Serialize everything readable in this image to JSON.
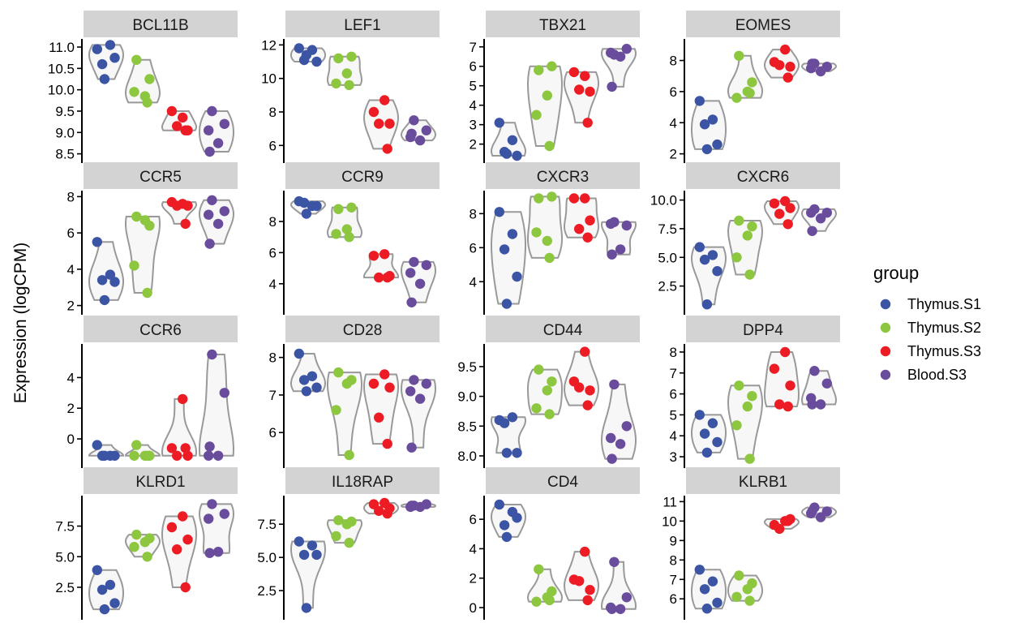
{
  "chart_data": {
    "type": "violin",
    "ylabel": "Expression (logCPM)",
    "xlabel": "",
    "legend": {
      "title": "group",
      "position": "right",
      "entries": [
        "Thymus.S1",
        "Thymus.S2",
        "Thymus.S3",
        "Blood.S3"
      ]
    },
    "groups": [
      "Thymus.S1",
      "Thymus.S2",
      "Thymus.S3",
      "Blood.S3"
    ],
    "colors": {
      "Thymus.S1": "#3B54A4",
      "Thymus.S2": "#8DC63F",
      "Thymus.S3": "#ED1C24",
      "Blood.S3": "#6A4C9C",
      "violin_stroke": "#999999",
      "violin_fill": "#F7F7F7",
      "strip_fill": "#D3D3D3"
    },
    "panels": [
      {
        "gene": "BCL11B",
        "ylim": [
          8.5,
          11.05
        ],
        "ticks": [
          "8.5",
          "9.0",
          "9.5",
          "10.0",
          "10.5",
          "11.0"
        ],
        "series": [
          [
            10.95,
            11.05,
            10.6,
            10.75,
            10.25
          ],
          [
            10.7,
            10.25,
            9.85,
            9.95,
            9.7
          ],
          [
            9.35,
            9.5,
            9.05,
            9.15,
            9.05
          ],
          [
            9.5,
            9.2,
            9.05,
            8.75,
            8.55
          ]
        ]
      },
      {
        "gene": "LEF1",
        "ylim": [
          5.5,
          12.0
        ],
        "ticks": [
          "6",
          "8",
          "10",
          "12"
        ],
        "series": [
          [
            11.8,
            11.7,
            11.1,
            11.0,
            11.4
          ],
          [
            11.2,
            11.3,
            10.3,
            9.7,
            9.6
          ],
          [
            8.7,
            8.0,
            7.3,
            7.3,
            5.8
          ],
          [
            7.5,
            6.9,
            6.5,
            6.3,
            6.7
          ]
        ]
      },
      {
        "gene": "TBX21",
        "ylim": [
          1.5,
          7.1
        ],
        "ticks": [
          "2",
          "3",
          "4",
          "5",
          "6",
          "7"
        ],
        "series": [
          [
            3.1,
            2.2,
            1.6,
            1.4,
            1.5
          ],
          [
            5.8,
            6.0,
            4.5,
            3.5,
            1.9
          ],
          [
            5.5,
            5.7,
            4.7,
            4.8,
            3.1
          ],
          [
            6.6,
            6.9,
            6.7,
            6.5,
            4.95
          ]
        ]
      },
      {
        "gene": "EOMES",
        "ylim": [
          2.0,
          9.0
        ],
        "ticks": [
          "2",
          "4",
          "6",
          "8"
        ],
        "series": [
          [
            5.4,
            4.2,
            3.9,
            2.6,
            2.3
          ],
          [
            8.3,
            6.6,
            6.0,
            5.6,
            5.9
          ],
          [
            8.7,
            7.9,
            7.6,
            7.7,
            6.9
          ],
          [
            7.8,
            7.6,
            7.5,
            7.3,
            7.8
          ]
        ]
      },
      {
        "gene": "CCR5",
        "ylim": [
          2.0,
          8.0
        ],
        "ticks": [
          "2",
          "4",
          "6",
          "8"
        ],
        "series": [
          [
            5.5,
            3.7,
            3.4,
            3.3,
            2.3
          ],
          [
            6.9,
            6.4,
            6.7,
            4.2,
            2.7
          ],
          [
            7.6,
            7.7,
            7.5,
            7.5,
            6.5
          ],
          [
            7.8,
            7.2,
            7.0,
            6.5,
            5.4
          ]
        ]
      },
      {
        "gene": "CCR9",
        "ylim": [
          2.6,
          9.6
        ],
        "ticks": [
          "4",
          "6",
          "8"
        ],
        "series": [
          [
            9.3,
            9.0,
            9.2,
            9.0,
            8.5
          ],
          [
            8.8,
            8.9,
            7.5,
            7.2,
            7.0
          ],
          [
            5.9,
            5.8,
            4.5,
            4.4,
            4.4
          ],
          [
            5.4,
            5.2,
            4.7,
            4.0,
            2.8
          ]
        ]
      },
      {
        "gene": "CXCR3",
        "ylim": [
          2.6,
          9.0
        ],
        "ticks": [
          "4",
          "6",
          "8"
        ],
        "series": [
          [
            8.1,
            6.8,
            5.9,
            4.3,
            2.7
          ],
          [
            8.9,
            9.0,
            6.4,
            6.9,
            5.4
          ],
          [
            8.9,
            8.9,
            7.6,
            7.1,
            6.6
          ],
          [
            7.5,
            7.3,
            7.4,
            5.9,
            5.6
          ]
        ]
      },
      {
        "gene": "CXCR6",
        "ylim": [
          0.8,
          10.3
        ],
        "ticks": [
          "2.5",
          "5.0",
          "7.5",
          "10.0"
        ],
        "series": [
          [
            5.9,
            5.2,
            4.8,
            3.8,
            0.9
          ],
          [
            8.2,
            7.7,
            6.9,
            5.0,
            3.5
          ],
          [
            9.9,
            9.7,
            9.3,
            8.8,
            7.9
          ],
          [
            9.2,
            8.9,
            8.9,
            8.4,
            7.3
          ]
        ]
      },
      {
        "gene": "CCR6",
        "ylim": [
          -1.3,
          5.8
        ],
        "ticks": [
          "0",
          "2",
          "4"
        ],
        "series": [
          [
            -0.4,
            -1.1,
            -1.1,
            -1.1,
            -1.1
          ],
          [
            -0.4,
            -1.1,
            -1.1,
            -1.1,
            -1.1
          ],
          [
            2.6,
            -0.6,
            -1.1,
            -1.1,
            -0.6
          ],
          [
            5.5,
            3.0,
            -1.1,
            -1.1,
            -0.5
          ]
        ]
      },
      {
        "gene": "CD28",
        "ylim": [
          5.3,
          8.2
        ],
        "ticks": [
          "6",
          "7",
          "8"
        ],
        "series": [
          [
            8.1,
            7.5,
            7.4,
            7.2,
            7.1
          ],
          [
            7.6,
            7.4,
            7.3,
            6.6,
            5.4
          ],
          [
            7.55,
            7.3,
            7.2,
            6.4,
            5.7
          ],
          [
            7.4,
            7.3,
            7.1,
            6.9,
            5.6
          ]
        ]
      },
      {
        "gene": "CD44",
        "ylim": [
          7.95,
          9.78
        ],
        "ticks": [
          "8.0",
          "8.5",
          "9.0",
          "9.5"
        ],
        "series": [
          [
            8.6,
            8.65,
            8.55,
            8.05,
            8.05
          ],
          [
            9.45,
            9.25,
            9.1,
            8.8,
            8.7
          ],
          [
            9.75,
            9.25,
            9.1,
            9.15,
            8.85
          ],
          [
            9.2,
            8.5,
            8.3,
            8.2,
            7.95
          ]
        ]
      },
      {
        "gene": "DPP4",
        "ylim": [
          2.9,
          8.1
        ],
        "ticks": [
          "3",
          "4",
          "5",
          "6",
          "7",
          "8"
        ],
        "series": [
          [
            5.0,
            4.6,
            4.1,
            3.7,
            3.2
          ],
          [
            6.4,
            5.9,
            5.4,
            4.5,
            2.9
          ],
          [
            8.0,
            7.2,
            6.4,
            5.5,
            5.4
          ],
          [
            7.1,
            6.5,
            5.8,
            5.5,
            5.5
          ]
        ]
      },
      {
        "gene": "KLRD1",
        "ylim": [
          0.6,
          9.5
        ],
        "ticks": [
          "2.5",
          "5.0",
          "7.5"
        ],
        "series": [
          [
            3.9,
            2.7,
            2.3,
            1.2,
            0.7
          ],
          [
            6.8,
            6.5,
            6.2,
            5.8,
            5.0
          ],
          [
            8.3,
            7.4,
            6.4,
            5.6,
            2.5
          ],
          [
            9.3,
            8.5,
            8.1,
            5.4,
            5.3
          ]
        ]
      },
      {
        "gene": "IL18RAP",
        "ylim": [
          1.0,
          9.2
        ],
        "ticks": [
          "2.5",
          "5.0",
          "7.5"
        ],
        "series": [
          [
            6.2,
            5.9,
            5.2,
            5.2,
            1.2
          ],
          [
            7.8,
            7.7,
            7.5,
            6.6,
            6.1
          ],
          [
            9.1,
            9.0,
            8.7,
            8.5,
            8.3
          ],
          [
            8.9,
            9.0,
            8.8,
            8.8,
            8.9
          ]
        ]
      },
      {
        "gene": "CD4",
        "ylim": [
          -0.2,
          7.2
        ],
        "ticks": [
          "0",
          "2",
          "4",
          "6"
        ],
        "series": [
          [
            7.0,
            6.5,
            5.6,
            6.1,
            4.8
          ],
          [
            2.6,
            1.1,
            0.7,
            0.4,
            0.5
          ],
          [
            3.8,
            1.9,
            1.2,
            1.8,
            0.5
          ],
          [
            3.1,
            0.7,
            0.0,
            -0.1,
            -0.1
          ]
        ]
      },
      {
        "gene": "KLRB1",
        "ylim": [
          5.4,
          11.0
        ],
        "ticks": [
          "6",
          "7",
          "8",
          "9",
          "10",
          "11"
        ],
        "series": [
          [
            7.5,
            6.9,
            6.5,
            5.8,
            5.5
          ],
          [
            7.2,
            6.8,
            6.5,
            6.1,
            5.9
          ],
          [
            10.0,
            9.8,
            10.1,
            9.6,
            10.0
          ],
          [
            10.7,
            10.5,
            10.4,
            10.2,
            10.5
          ]
        ]
      }
    ]
  }
}
